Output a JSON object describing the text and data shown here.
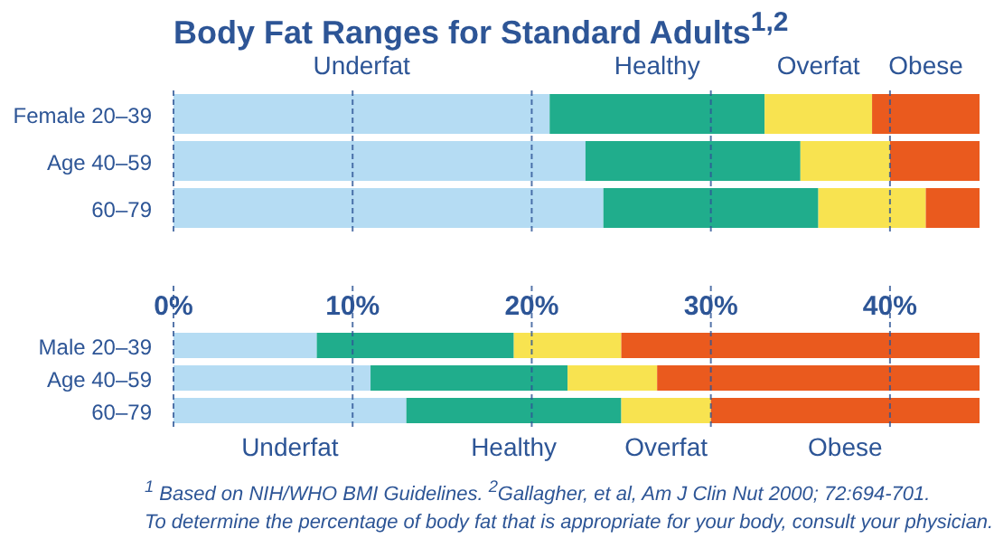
{
  "chart_data": [
    {
      "type": "bar",
      "orientation": "horizontal",
      "stacked": true,
      "title": "Body Fat Ranges for Standard Adults$^{1,2}$",
      "categories": [
        "Female 20–39",
        "Age 40–59",
        "60–79"
      ],
      "series": [
        {
          "name": "Underfat",
          "color": "#b5dcf3",
          "values": [
            21,
            23,
            24
          ]
        },
        {
          "name": "Healthy",
          "color": "#20ad8c",
          "values": [
            12,
            12,
            12
          ]
        },
        {
          "name": "Overfat",
          "color": "#f8e350",
          "values": [
            6,
            5,
            6
          ]
        },
        {
          "name": "Obese",
          "color": "#ea5a1e",
          "values": [
            6,
            5,
            3
          ]
        }
      ],
      "xlim": [
        0,
        45
      ],
      "xticks": [
        {
          "value": 0,
          "label": null
        },
        {
          "value": 10,
          "label": null
        },
        {
          "value": 20,
          "label": null
        },
        {
          "value": 30,
          "label": null
        },
        {
          "value": 40,
          "label": null
        }
      ],
      "grid": "x",
      "tick_labels": "y"
    },
    {
      "type": "bar",
      "orientation": "horizontal",
      "stacked": true,
      "categories": [
        "Male 20–39",
        "Age 40–59",
        "60–79"
      ],
      "series": [
        {
          "name": "Underfat",
          "color": "#b5dcf3",
          "values": [
            8,
            11,
            13
          ]
        },
        {
          "name": "Healthy",
          "color": "#20ad8c",
          "values": [
            11,
            11,
            12
          ]
        },
        {
          "name": "Overfat",
          "color": "#f8e350",
          "values": [
            6,
            5,
            5
          ]
        },
        {
          "name": "Obese",
          "color": "#ea5a1e",
          "values": [
            20,
            18,
            15
          ]
        }
      ],
      "xlim": [
        0,
        45
      ],
      "xticks": [
        {
          "value": 0,
          "label": "0%"
        },
        {
          "value": 10,
          "label": "10%"
        },
        {
          "value": 20,
          "label": "20%"
        },
        {
          "value": 30,
          "label": "30%"
        },
        {
          "value": 40,
          "label": "40%"
        }
      ],
      "grid": "x",
      "annotations": [
        "$^{1}$ Based on NIH/WHO BMI Guidelines.  $^{2}$Gallagher, et al, Am J Clin Nut 2000; 72:694-701.",
        "To determine the percentage of body fat that is appropriate for your body, consult your physician."
      ]
    }
  ]
}
